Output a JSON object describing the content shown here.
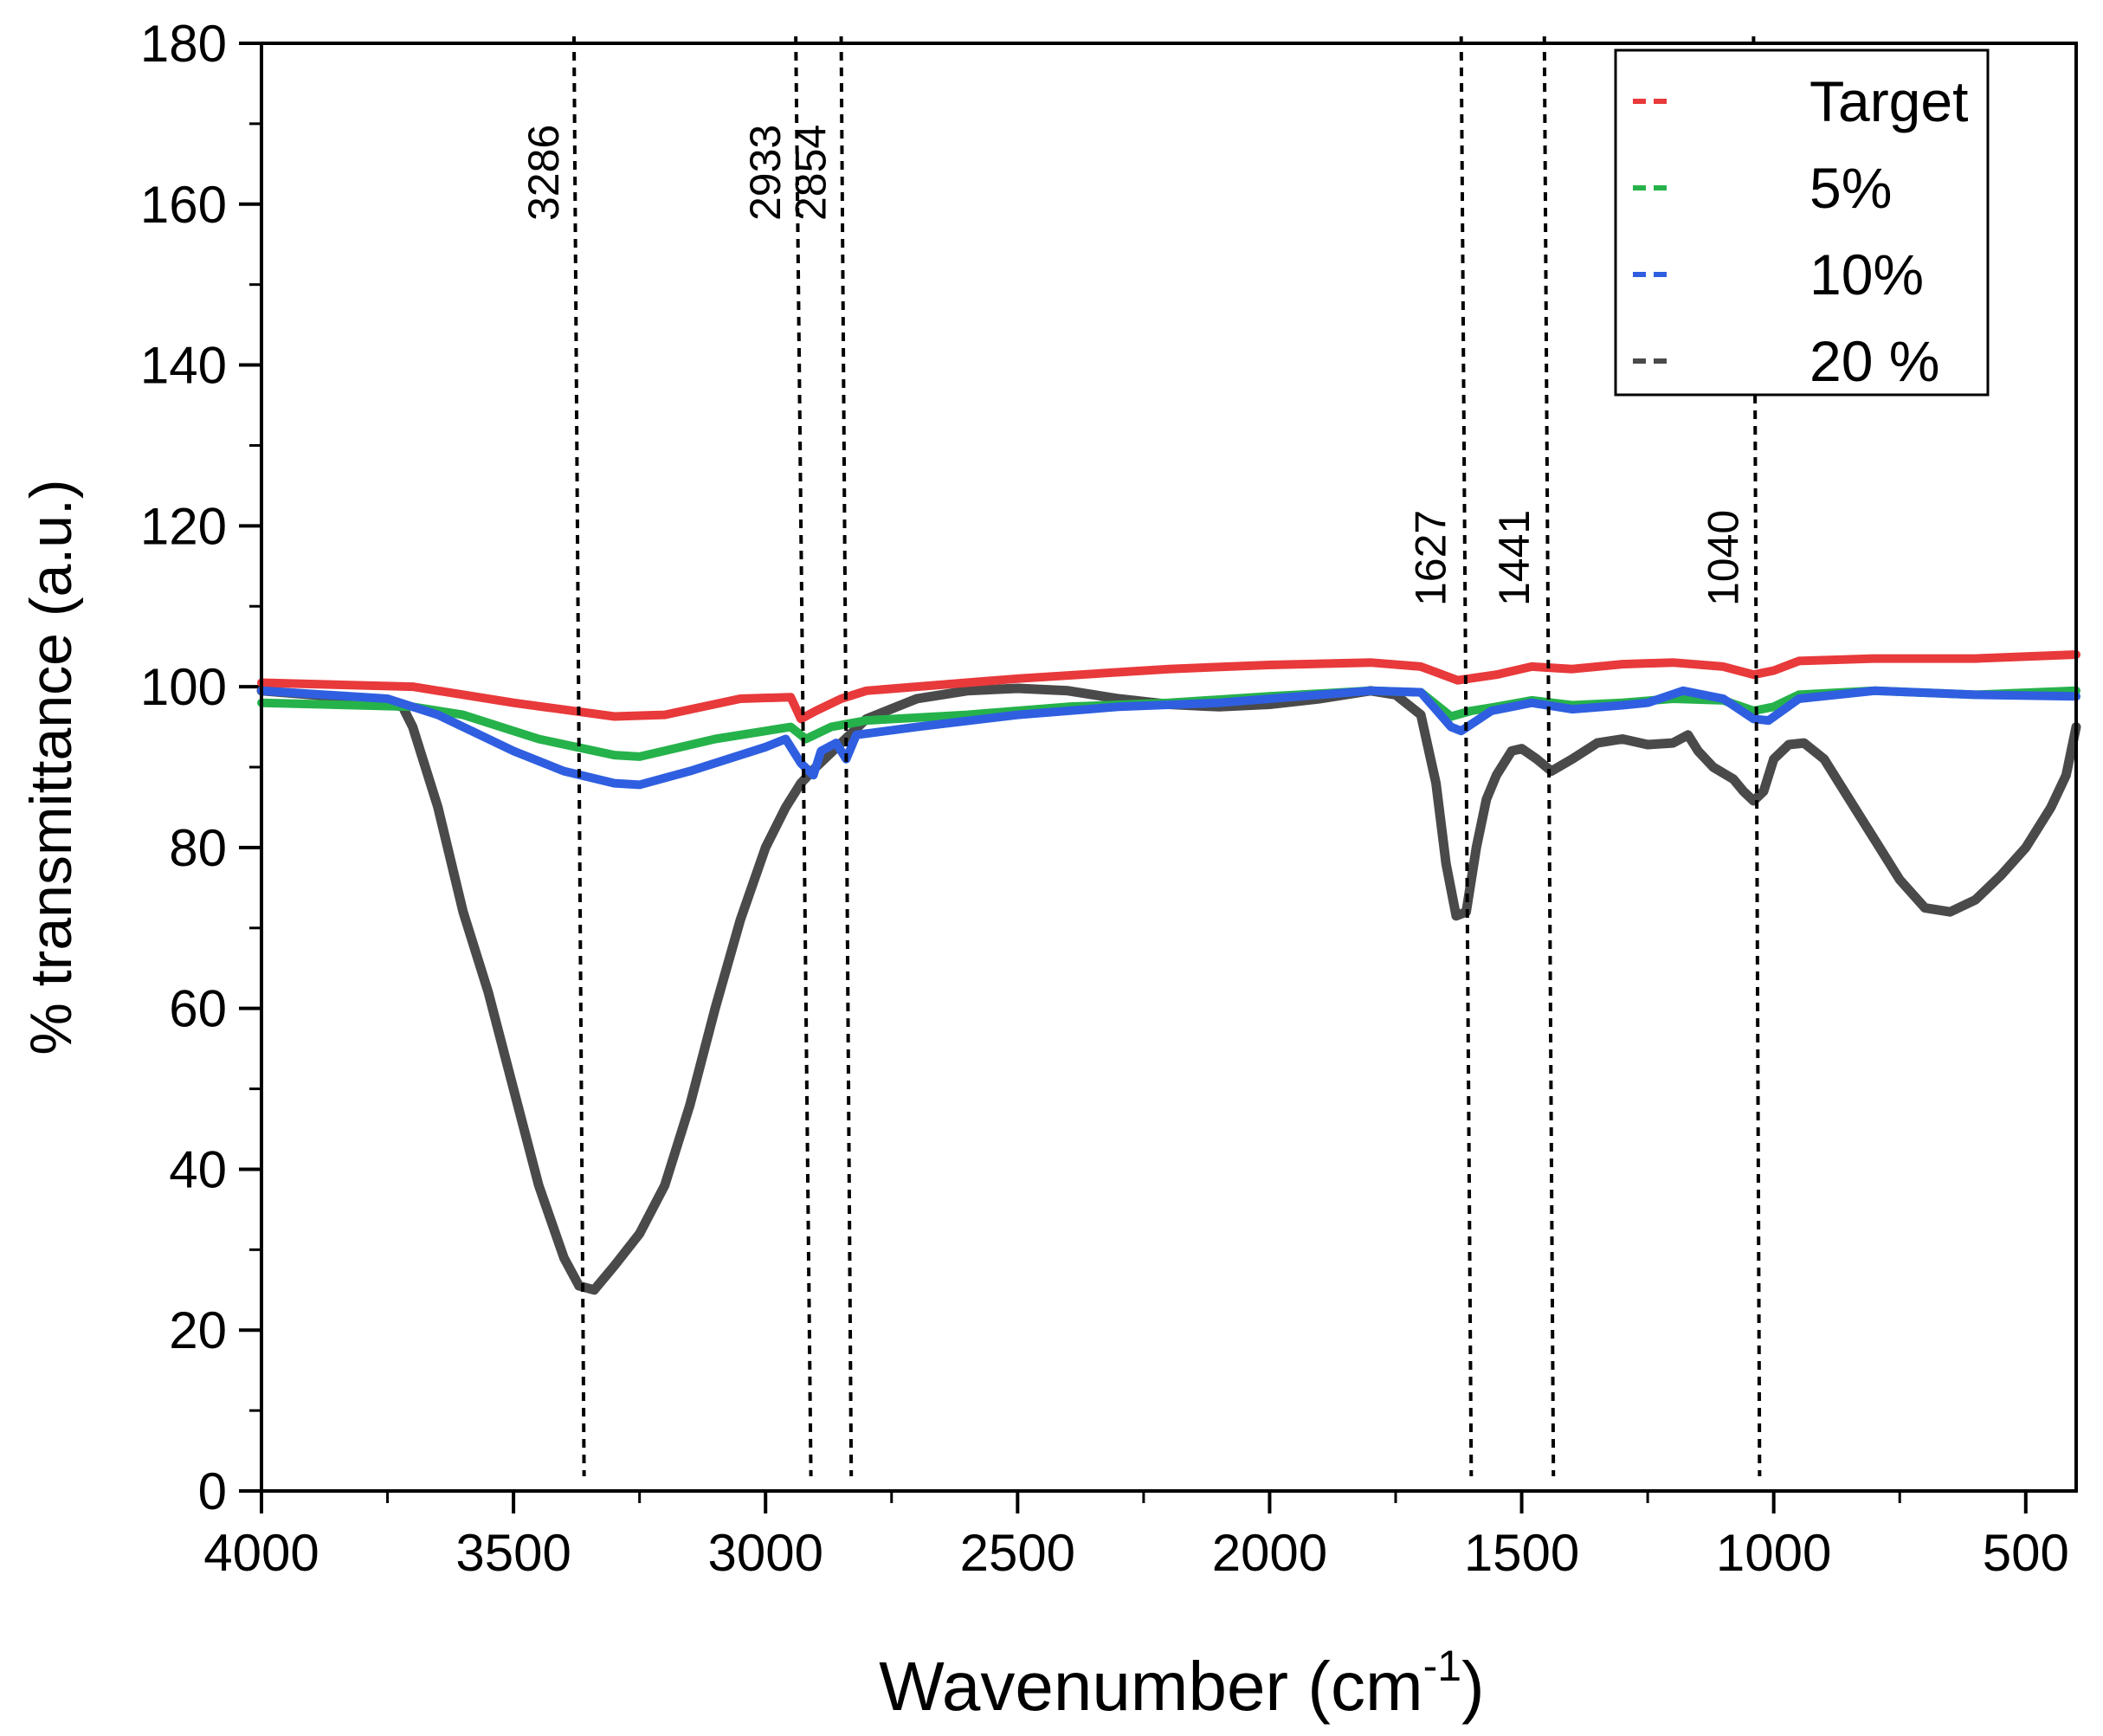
{
  "chart_data": {
    "type": "line",
    "title": "",
    "xlabel": "Wavenumber (cm",
    "xlabel_sup": "-1",
    "xlabel_close": ")",
    "ylabel": "% transmittance (a.u.)",
    "xlim": [
      4000,
      400
    ],
    "ylim": [
      0,
      180
    ],
    "x_ticks": [
      4000,
      3500,
      3000,
      2500,
      2000,
      1500,
      1000,
      500
    ],
    "y_ticks": [
      0,
      20,
      40,
      60,
      80,
      100,
      120,
      140,
      160,
      180
    ],
    "legend_position": "top-right",
    "series": [
      {
        "name": "Target",
        "color": "#e8393b",
        "points": [
          [
            4000,
            100.5
          ],
          [
            3700,
            100
          ],
          [
            3500,
            98
          ],
          [
            3300,
            96.3
          ],
          [
            3200,
            96.5
          ],
          [
            3050,
            98.5
          ],
          [
            2950,
            98.7
          ],
          [
            2930,
            96
          ],
          [
            2900,
            97
          ],
          [
            2850,
            98.5
          ],
          [
            2800,
            99.5
          ],
          [
            2500,
            101
          ],
          [
            2200,
            102.2
          ],
          [
            2000,
            102.7
          ],
          [
            1800,
            103
          ],
          [
            1700,
            102.5
          ],
          [
            1627,
            100.8
          ],
          [
            1550,
            101.5
          ],
          [
            1480,
            102.5
          ],
          [
            1400,
            102.2
          ],
          [
            1300,
            102.8
          ],
          [
            1200,
            103
          ],
          [
            1100,
            102.5
          ],
          [
            1040,
            101.5
          ],
          [
            1000,
            102
          ],
          [
            950,
            103.2
          ],
          [
            800,
            103.5
          ],
          [
            600,
            103.5
          ],
          [
            400,
            104
          ]
        ]
      },
      {
        "name": "5%",
        "color": "#26b24b",
        "points": [
          [
            4000,
            98
          ],
          [
            3700,
            97.5
          ],
          [
            3600,
            96.5
          ],
          [
            3450,
            93.5
          ],
          [
            3300,
            91.5
          ],
          [
            3250,
            91.3
          ],
          [
            3100,
            93.5
          ],
          [
            2950,
            95
          ],
          [
            2920,
            93.5
          ],
          [
            2870,
            95
          ],
          [
            2800,
            95.8
          ],
          [
            2600,
            96.5
          ],
          [
            2400,
            97.5
          ],
          [
            2200,
            98
          ],
          [
            2000,
            98.8
          ],
          [
            1800,
            99.5
          ],
          [
            1700,
            99.3
          ],
          [
            1640,
            96.3
          ],
          [
            1600,
            97
          ],
          [
            1550,
            97.5
          ],
          [
            1480,
            98.3
          ],
          [
            1400,
            97.7
          ],
          [
            1300,
            98
          ],
          [
            1200,
            98.5
          ],
          [
            1100,
            98.3
          ],
          [
            1040,
            97
          ],
          [
            1000,
            97.5
          ],
          [
            950,
            99
          ],
          [
            800,
            99.5
          ],
          [
            600,
            99
          ],
          [
            400,
            99.5
          ]
        ]
      },
      {
        "name": "10%",
        "color": "#2f5fe0",
        "points": [
          [
            4000,
            99.5
          ],
          [
            3750,
            98.5
          ],
          [
            3650,
            96.5
          ],
          [
            3500,
            92
          ],
          [
            3400,
            89.5
          ],
          [
            3300,
            88
          ],
          [
            3250,
            87.8
          ],
          [
            3150,
            89.5
          ],
          [
            3000,
            92.5
          ],
          [
            2960,
            93.5
          ],
          [
            2930,
            90.5
          ],
          [
            2905,
            89
          ],
          [
            2890,
            92
          ],
          [
            2860,
            93
          ],
          [
            2840,
            91
          ],
          [
            2820,
            94
          ],
          [
            2700,
            95
          ],
          [
            2500,
            96.5
          ],
          [
            2300,
            97.5
          ],
          [
            2100,
            98
          ],
          [
            1900,
            99
          ],
          [
            1800,
            99.5
          ],
          [
            1700,
            99.3
          ],
          [
            1640,
            95
          ],
          [
            1620,
            94.5
          ],
          [
            1560,
            97
          ],
          [
            1480,
            98
          ],
          [
            1400,
            97.2
          ],
          [
            1300,
            97.7
          ],
          [
            1250,
            98
          ],
          [
            1180,
            99.5
          ],
          [
            1100,
            98.5
          ],
          [
            1040,
            96
          ],
          [
            1010,
            95.8
          ],
          [
            950,
            98.5
          ],
          [
            800,
            99.5
          ],
          [
            600,
            99
          ],
          [
            400,
            98.8
          ]
        ]
      },
      {
        "name": "20 %",
        "color": "#4a4a4a",
        "points": [
          [
            4000,
            99.5
          ],
          [
            3800,
            98.5
          ],
          [
            3720,
            97.5
          ],
          [
            3700,
            95
          ],
          [
            3650,
            85
          ],
          [
            3600,
            72
          ],
          [
            3550,
            62
          ],
          [
            3500,
            50
          ],
          [
            3450,
            38
          ],
          [
            3400,
            29
          ],
          [
            3370,
            25.5
          ],
          [
            3340,
            25
          ],
          [
            3300,
            28
          ],
          [
            3250,
            32
          ],
          [
            3200,
            38
          ],
          [
            3150,
            48
          ],
          [
            3100,
            60
          ],
          [
            3050,
            71
          ],
          [
            3000,
            80
          ],
          [
            2960,
            85
          ],
          [
            2930,
            88
          ],
          [
            2900,
            90
          ],
          [
            2850,
            93
          ],
          [
            2800,
            96
          ],
          [
            2700,
            98.5
          ],
          [
            2600,
            99.5
          ],
          [
            2500,
            99.8
          ],
          [
            2400,
            99.5
          ],
          [
            2300,
            98.5
          ],
          [
            2200,
            97.8
          ],
          [
            2100,
            97.5
          ],
          [
            2000,
            97.8
          ],
          [
            1900,
            98.5
          ],
          [
            1800,
            99.5
          ],
          [
            1750,
            99
          ],
          [
            1700,
            96.5
          ],
          [
            1670,
            88
          ],
          [
            1650,
            78
          ],
          [
            1630,
            71.5
          ],
          [
            1610,
            72
          ],
          [
            1590,
            80
          ],
          [
            1570,
            86
          ],
          [
            1550,
            89
          ],
          [
            1520,
            92
          ],
          [
            1500,
            92.3
          ],
          [
            1470,
            91
          ],
          [
            1441,
            89.5
          ],
          [
            1400,
            91
          ],
          [
            1350,
            93
          ],
          [
            1300,
            93.5
          ],
          [
            1250,
            92.8
          ],
          [
            1200,
            93
          ],
          [
            1170,
            94
          ],
          [
            1150,
            92
          ],
          [
            1120,
            90
          ],
          [
            1080,
            88.5
          ],
          [
            1060,
            87
          ],
          [
            1040,
            85.8
          ],
          [
            1020,
            87
          ],
          [
            1000,
            91
          ],
          [
            970,
            92.8
          ],
          [
            940,
            93
          ],
          [
            900,
            91
          ],
          [
            850,
            86
          ],
          [
            800,
            81
          ],
          [
            750,
            76
          ],
          [
            700,
            72.5
          ],
          [
            650,
            72
          ],
          [
            600,
            73.5
          ],
          [
            550,
            76.5
          ],
          [
            500,
            80
          ],
          [
            450,
            85
          ],
          [
            420,
            89
          ],
          [
            400,
            95
          ]
        ]
      }
    ],
    "annotations": [
      {
        "label": "3286",
        "x_top": 3380,
        "x_bottom": 3360
      },
      {
        "label": "2933",
        "x_top": 2940,
        "x_bottom": 2910
      },
      {
        "label": "2854",
        "x_top": 2850,
        "x_bottom": 2830
      },
      {
        "label": "1627",
        "x_top": 1620,
        "x_bottom": 1600
      },
      {
        "label": "1441",
        "x_top": 1455,
        "x_bottom": 1437
      },
      {
        "label": "1040",
        "x_top": 1040,
        "x_bottom": 1028
      }
    ]
  }
}
